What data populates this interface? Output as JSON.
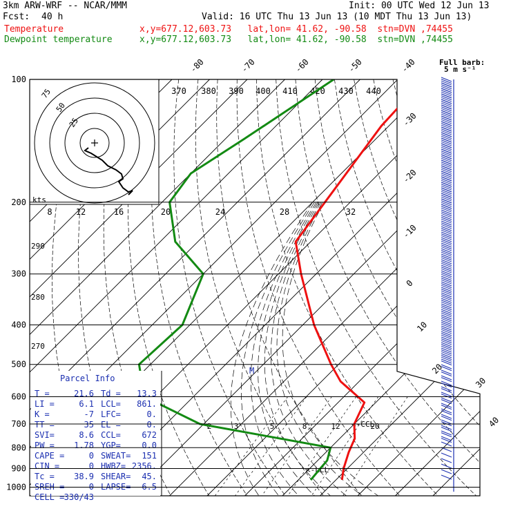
{
  "header": {
    "title_left": "3km ARW-WRF -- NCAR/MMM",
    "fcst_label": "Fcst:",
    "fcst_value": "40 h",
    "init": "Init: 00 UTC Wed 12 Jun 13",
    "valid": "Valid: 16 UTC Thu 13 Jun 13 (10 MDT Thu 13 Jun 13)",
    "temp_label": "Temperature",
    "dew_label": "Dewpoint temperature",
    "temp_loc": "x,y=677.12,603.73   lat,lon= 41.62, -90.58  stn=DVN ,74455",
    "dew_loc": "x,y=677.12,603.73   lat,lon= 41.62, -90.58  stn=DVN ,74455"
  },
  "colors": {
    "temperature": "#ee1111",
    "dewpoint": "#138a13",
    "parcel_text": "#1a2eb0",
    "barbs": "#1a2eb0"
  },
  "windbarb_legend": {
    "line1": "Full barb:",
    "line2": "5 m s⁻¹"
  },
  "hodograph": {
    "ring_labels": [
      "75",
      "50",
      "25"
    ],
    "kts_label": "kts",
    "speed_ticks": [
      "8",
      "12",
      "16",
      "20",
      "24",
      "28",
      "32"
    ],
    "theta_ticks": [
      "370",
      "380",
      "390",
      "400",
      "410",
      "420",
      "430",
      "440"
    ]
  },
  "theta_left_labels": [
    "290",
    "280",
    "270"
  ],
  "mixing_ratio_labels": [
    "2",
    "3",
    "5",
    "8",
    "12",
    "20"
  ],
  "ccl_label": "<-CCL",
  "lcl_label": "<-LCL",
  "parcel_marker": "M",
  "parcel_info": {
    "title": "Parcel Info",
    "rows": [
      [
        "T  =",
        "21.6",
        "Td =",
        "13.3"
      ],
      [
        "LI =",
        "6.1",
        "LCL=",
        "861."
      ],
      [
        "K  =",
        "-7",
        "LFC=",
        "0."
      ],
      [
        "TT =",
        "35",
        "EL =",
        "0."
      ],
      [
        "SVI=",
        "8.6",
        "CCL=",
        "672"
      ],
      [
        "PW =",
        "1.78",
        "YGP=",
        "0.0"
      ],
      [
        "CAPE =",
        "0",
        "SWEAT=",
        "151"
      ],
      [
        "CIN  =",
        "0",
        "HWBZ=",
        "2356."
      ],
      [
        "Tc   =",
        "38.9",
        "SHEAR=",
        "45."
      ],
      [
        "SREH =",
        "0",
        "LAPSE=",
        "6.5"
      ],
      [
        "CELL =",
        "330/43",
        "",
        ""
      ]
    ]
  },
  "chart_data": {
    "type": "line",
    "title": "",
    "ylabel": "",
    "y_scale": "log-pressure",
    "pressure_ticks": [
      100,
      200,
      300,
      400,
      500,
      600,
      700,
      800,
      900,
      1000
    ],
    "isotherm_labels": [
      -80,
      -70,
      -60,
      -50,
      -40,
      -30,
      -20,
      -10,
      0,
      10,
      20,
      30,
      40
    ],
    "series": [
      {
        "name": "Temperature",
        "pressure": [
          100,
          130,
          180,
          250,
          300,
          400,
          500,
          550,
          620,
          700,
          760,
          820,
          900,
          960
        ],
        "temperature": [
          -63,
          -62,
          -58,
          -54,
          -44,
          -27,
          -12,
          -5,
          7,
          10,
          14,
          16,
          19,
          21.6
        ]
      },
      {
        "name": "Dewpoint temperature",
        "pressure": [
          100,
          140,
          170,
          200,
          250,
          300,
          400,
          500,
          600,
          700,
          800,
          860,
          900,
          960
        ],
        "temperature": [
          -87,
          -95,
          -100,
          -98,
          -86,
          -70,
          -62,
          -63,
          -53,
          -31,
          10,
          12.5,
          12.8,
          13.3
        ]
      }
    ]
  }
}
